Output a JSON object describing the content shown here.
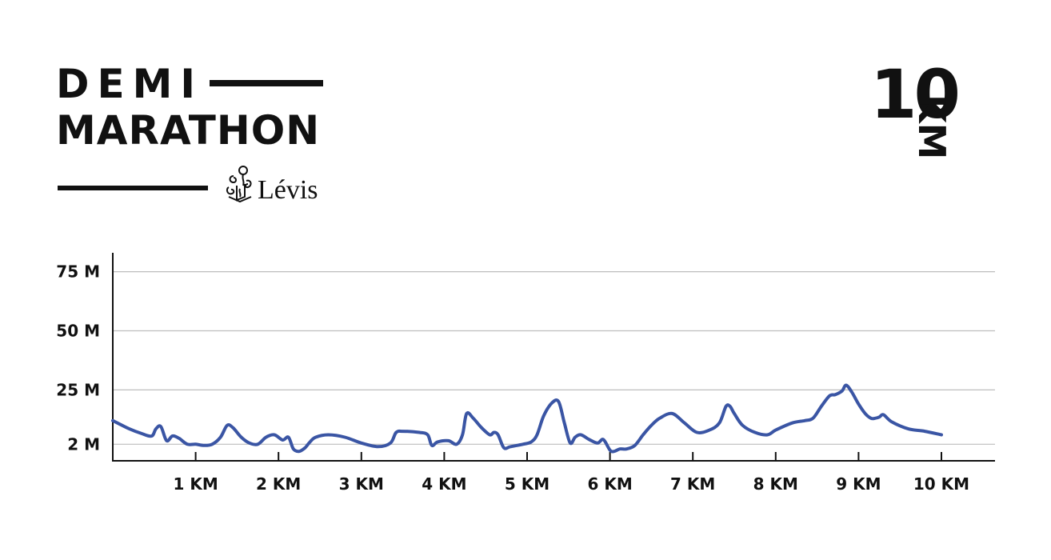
{
  "header": {
    "title_line1": "DEMI",
    "title_line2": "MARATHON",
    "city": "Lévis",
    "distance_number": "10",
    "distance_unit": "KM"
  },
  "colors": {
    "line": "#3a55a4",
    "axis": "#111111",
    "grid": "#bdbdbd",
    "text": "#111111"
  },
  "chart_data": {
    "type": "line",
    "title": "",
    "xlabel": "",
    "ylabel": "",
    "xlim": [
      0,
      10.6
    ],
    "ylim": [
      -5,
      83
    ],
    "grid": true,
    "y_ticks": [
      {
        "value": 2,
        "label": "2 M"
      },
      {
        "value": 25,
        "label": "25 M"
      },
      {
        "value": 50,
        "label": "50 M"
      },
      {
        "value": 75,
        "label": "75 M"
      }
    ],
    "x_ticks": [
      {
        "value": 1,
        "label": "1 KM"
      },
      {
        "value": 2,
        "label": "2 KM"
      },
      {
        "value": 3,
        "label": "3 KM"
      },
      {
        "value": 4,
        "label": "4 KM"
      },
      {
        "value": 5,
        "label": "5 KM"
      },
      {
        "value": 6,
        "label": "6 KM"
      },
      {
        "value": 7,
        "label": "7 KM"
      },
      {
        "value": 8,
        "label": "8 KM"
      },
      {
        "value": 9,
        "label": "9 KM"
      },
      {
        "value": 10,
        "label": "10 KM"
      }
    ],
    "series": [
      {
        "x": [
          0,
          0.2,
          0.35,
          0.47,
          0.52,
          0.58,
          0.65,
          0.72,
          0.8,
          0.9,
          1.0,
          1.1,
          1.2,
          1.3,
          1.38,
          1.45,
          1.55,
          1.65,
          1.75,
          1.85,
          1.95,
          2.05,
          2.12,
          2.18,
          2.25,
          2.32,
          2.38,
          2.45,
          2.6,
          2.8,
          3.0,
          3.2,
          3.35,
          3.42,
          3.5,
          3.7,
          3.8,
          3.85,
          3.92,
          4.05,
          4.15,
          4.22,
          4.27,
          4.35,
          4.45,
          4.55,
          4.6,
          4.65,
          4.72,
          4.8,
          4.95,
          5.05,
          5.12,
          5.2,
          5.3,
          5.38,
          5.45,
          5.52,
          5.58,
          5.65,
          5.75,
          5.85,
          5.92,
          6.0,
          6.05,
          6.12,
          6.2,
          6.3,
          6.4,
          6.5,
          6.6,
          6.75,
          6.9,
          7.05,
          7.2,
          7.32,
          7.4,
          7.45,
          7.5,
          7.6,
          7.75,
          7.9,
          8.0,
          8.2,
          8.35,
          8.45,
          8.55,
          8.65,
          8.72,
          8.8,
          8.85,
          8.92,
          9.0,
          9.08,
          9.15,
          9.2,
          9.25,
          9.3,
          9.4,
          9.6,
          9.8,
          10.0
        ],
        "y": [
          12,
          8.5,
          6.5,
          5.5,
          8.5,
          9.5,
          3.5,
          5.5,
          4.5,
          2,
          2,
          1.5,
          2,
          5,
          10,
          9,
          5,
          2.5,
          2,
          5,
          6,
          3.8,
          5,
          0,
          -1,
          0.5,
          3,
          5,
          6,
          5,
          2.5,
          1,
          2.5,
          7,
          7.5,
          7,
          6,
          1.5,
          3,
          3.5,
          2,
          6,
          15,
          13,
          9,
          6,
          7,
          6,
          0.5,
          1,
          2,
          3,
          6,
          14,
          19.5,
          20,
          11,
          2.5,
          5,
          6,
          4,
          2.5,
          4,
          -0.5,
          -1,
          0,
          0,
          1.5,
          6,
          10,
          13,
          15,
          11,
          7,
          8,
          11,
          18,
          18,
          15,
          10,
          7,
          6,
          8,
          11,
          12,
          13,
          18,
          22.5,
          23,
          24.5,
          27,
          24,
          19,
          15,
          13,
          13,
          13.5,
          14.5,
          11.5,
          8.5,
          7.5,
          6
        ]
      }
    ]
  }
}
